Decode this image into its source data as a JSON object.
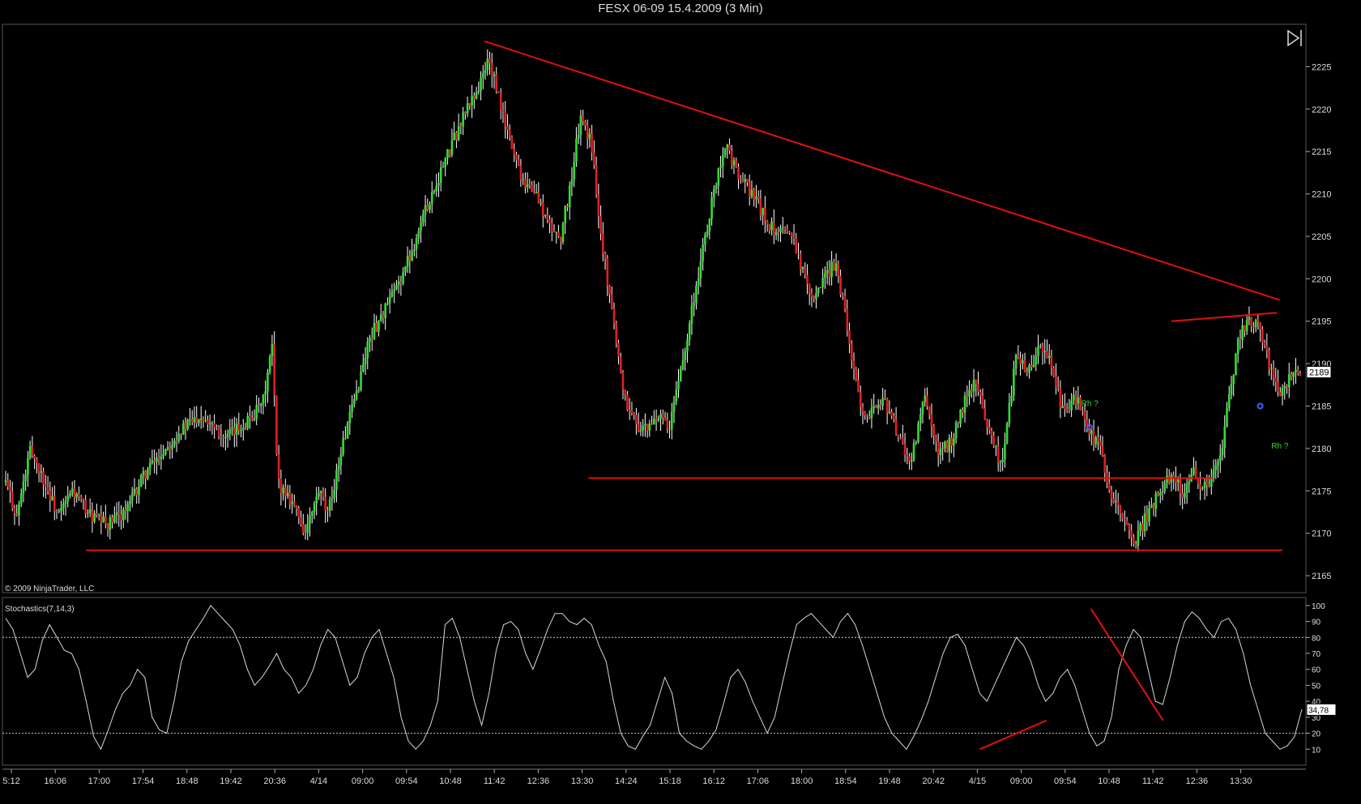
{
  "window": {
    "title": "FESX 06-09  15.4.2009 (3 Min)"
  },
  "copyright": "© 2009 NinjaTrader, LLC",
  "icons": {
    "play_end": "skip-to-end-icon"
  },
  "colors": {
    "up": "#33dd33",
    "down": "#e02020",
    "wick": "#ffffff",
    "trendline": "#e01010",
    "stoch": "#d8d8d8",
    "marker": "#4060ff",
    "label_green": "#33dd33"
  },
  "chart_data": [
    {
      "type": "candlestick",
      "title": "FESX 06-09  15.4.2009 (3 Min)",
      "ylim": [
        2163,
        2230
      ],
      "y_ticks": [
        2165,
        2170,
        2175,
        2180,
        2185,
        2190,
        2195,
        2200,
        2205,
        2210,
        2215,
        2220,
        2225
      ],
      "last_price": "2189",
      "x_ticks": [
        "5:12",
        "16:06",
        "17:00",
        "17:54",
        "18:48",
        "19:42",
        "20:36",
        "4/14",
        "09:00",
        "09:54",
        "10:48",
        "11:42",
        "12:36",
        "13:30",
        "14:24",
        "15:18",
        "16:12",
        "17:06",
        "18:00",
        "18:54",
        "19:48",
        "20:42",
        "4/15",
        "09:00",
        "09:54",
        "10:48",
        "11:42",
        "12:36",
        "13:30"
      ],
      "close_path": [
        [
          0,
          2176
        ],
        [
          8,
          2172
        ],
        [
          18,
          2180
        ],
        [
          28,
          2176
        ],
        [
          38,
          2172
        ],
        [
          48,
          2175
        ],
        [
          62,
          2172
        ],
        [
          74,
          2171
        ],
        [
          88,
          2173
        ],
        [
          100,
          2177
        ],
        [
          115,
          2180
        ],
        [
          125,
          2182
        ],
        [
          140,
          2184
        ],
        [
          150,
          2183
        ],
        [
          158,
          2181
        ],
        [
          172,
          2183
        ],
        [
          185,
          2185
        ],
        [
          192,
          2192
        ],
        [
          196,
          2176
        ],
        [
          206,
          2174
        ],
        [
          216,
          2170
        ],
        [
          226,
          2175
        ],
        [
          232,
          2172
        ],
        [
          242,
          2180
        ],
        [
          252,
          2186
        ],
        [
          262,
          2193
        ],
        [
          272,
          2196
        ],
        [
          282,
          2199
        ],
        [
          292,
          2203
        ],
        [
          302,
          2208
        ],
        [
          312,
          2212
        ],
        [
          322,
          2216
        ],
        [
          332,
          2220
        ],
        [
          342,
          2223
        ],
        [
          348,
          2226
        ],
        [
          354,
          2222
        ],
        [
          362,
          2217
        ],
        [
          372,
          2212
        ],
        [
          382,
          2210
        ],
        [
          392,
          2206
        ],
        [
          400,
          2205
        ],
        [
          408,
          2212
        ],
        [
          414,
          2219
        ],
        [
          422,
          2216
        ],
        [
          430,
          2204
        ],
        [
          438,
          2195
        ],
        [
          446,
          2186
        ],
        [
          454,
          2183
        ],
        [
          462,
          2182
        ],
        [
          470,
          2184
        ],
        [
          478,
          2182
        ],
        [
          486,
          2189
        ],
        [
          494,
          2196
        ],
        [
          502,
          2203
        ],
        [
          510,
          2210
        ],
        [
          518,
          2216
        ],
        [
          528,
          2212
        ],
        [
          538,
          2210
        ],
        [
          548,
          2207
        ],
        [
          556,
          2205
        ],
        [
          566,
          2206
        ],
        [
          574,
          2201
        ],
        [
          582,
          2198
        ],
        [
          590,
          2200
        ],
        [
          598,
          2202
        ],
        [
          606,
          2195
        ],
        [
          614,
          2186
        ],
        [
          622,
          2184
        ],
        [
          632,
          2186
        ],
        [
          642,
          2182
        ],
        [
          652,
          2178
        ],
        [
          662,
          2186
        ],
        [
          672,
          2179
        ],
        [
          682,
          2181
        ],
        [
          692,
          2186
        ],
        [
          700,
          2188
        ],
        [
          708,
          2182
        ],
        [
          718,
          2178
        ],
        [
          728,
          2191
        ],
        [
          738,
          2189
        ],
        [
          746,
          2192
        ],
        [
          754,
          2190
        ],
        [
          762,
          2184
        ],
        [
          772,
          2186
        ],
        [
          780,
          2182
        ],
        [
          788,
          2180
        ],
        [
          798,
          2174
        ],
        [
          806,
          2171
        ],
        [
          814,
          2169
        ],
        [
          822,
          2172
        ],
        [
          832,
          2175
        ],
        [
          840,
          2177
        ],
        [
          848,
          2175
        ],
        [
          856,
          2177
        ],
        [
          866,
          2175
        ],
        [
          876,
          2180
        ],
        [
          882,
          2186
        ],
        [
          888,
          2193
        ],
        [
          896,
          2195
        ],
        [
          904,
          2194
        ],
        [
          910,
          2190
        ],
        [
          918,
          2186
        ],
        [
          926,
          2189
        ],
        [
          934,
          2188
        ]
      ],
      "segments": [
        {
          "x_from": 0,
          "x_to": 192,
          "y_min": 2166,
          "y_max": 2193
        },
        {
          "x_from": 196,
          "x_to": 934,
          "y_min": 2167,
          "y_max": 2228
        }
      ],
      "annotations": [
        {
          "type": "trendline",
          "from": [
            345,
            2228
          ],
          "to": [
            918,
            2197.5
          ]
        },
        {
          "type": "hline",
          "from": [
            58,
            2168
          ],
          "to": [
            920,
            2168
          ]
        },
        {
          "type": "hline",
          "from": [
            420,
            2176.5
          ],
          "to": [
            870,
            2176.5
          ]
        },
        {
          "type": "trendline",
          "from": [
            840,
            2195
          ],
          "to": [
            916,
            2196
          ]
        },
        {
          "type": "label",
          "text": "Rh ?",
          "at": [
            775,
            2185
          ]
        },
        {
          "type": "label",
          "text": "Rh ?",
          "at": [
            912,
            2180
          ]
        }
      ],
      "markers": [
        [
          781,
          2182.5
        ],
        [
          904,
          2185
        ]
      ]
    },
    {
      "type": "line",
      "title": "Stochastics(7,14,3)",
      "ylim": [
        0,
        105
      ],
      "y_ticks": [
        10,
        20,
        30,
        40,
        50,
        60,
        70,
        80,
        90,
        100
      ],
      "reference_lines": [
        20,
        80
      ],
      "last_value": "34,78",
      "series": [
        {
          "values": [
            92,
            85,
            70,
            55,
            60,
            78,
            88,
            80,
            72,
            70,
            60,
            40,
            18,
            10,
            22,
            35,
            45,
            50,
            60,
            55,
            30,
            22,
            20,
            40,
            65,
            78,
            85,
            92,
            100,
            95,
            90,
            85,
            75,
            60,
            50,
            55,
            62,
            70,
            60,
            55,
            45,
            50,
            60,
            75,
            85,
            80,
            65,
            50,
            55,
            70,
            80,
            85,
            70,
            55,
            30,
            15,
            10,
            15,
            25,
            40,
            88,
            92,
            80,
            60,
            40,
            25,
            45,
            72,
            88,
            90,
            85,
            70,
            60,
            72,
            85,
            95,
            95,
            90,
            88,
            92,
            88,
            75,
            65,
            40,
            20,
            12,
            10,
            18,
            25,
            40,
            55,
            45,
            20,
            15,
            12,
            10,
            15,
            22,
            38,
            55,
            60,
            52,
            40,
            30,
            20,
            30,
            50,
            70,
            88,
            92,
            95,
            90,
            85,
            80,
            90,
            95,
            88,
            75,
            60,
            45,
            30,
            20,
            15,
            10,
            18,
            28,
            40,
            55,
            70,
            80,
            82,
            75,
            60,
            45,
            40,
            50,
            60,
            70,
            80,
            75,
            65,
            50,
            40,
            45,
            55,
            60,
            50,
            35,
            20,
            12,
            15,
            30,
            60,
            75,
            85,
            80,
            60,
            40,
            38,
            55,
            75,
            90,
            96,
            92,
            85,
            80,
            90,
            92,
            85,
            70,
            50,
            35,
            20,
            15,
            10,
            12,
            18,
            35
          ]
        }
      ]
    }
  ]
}
